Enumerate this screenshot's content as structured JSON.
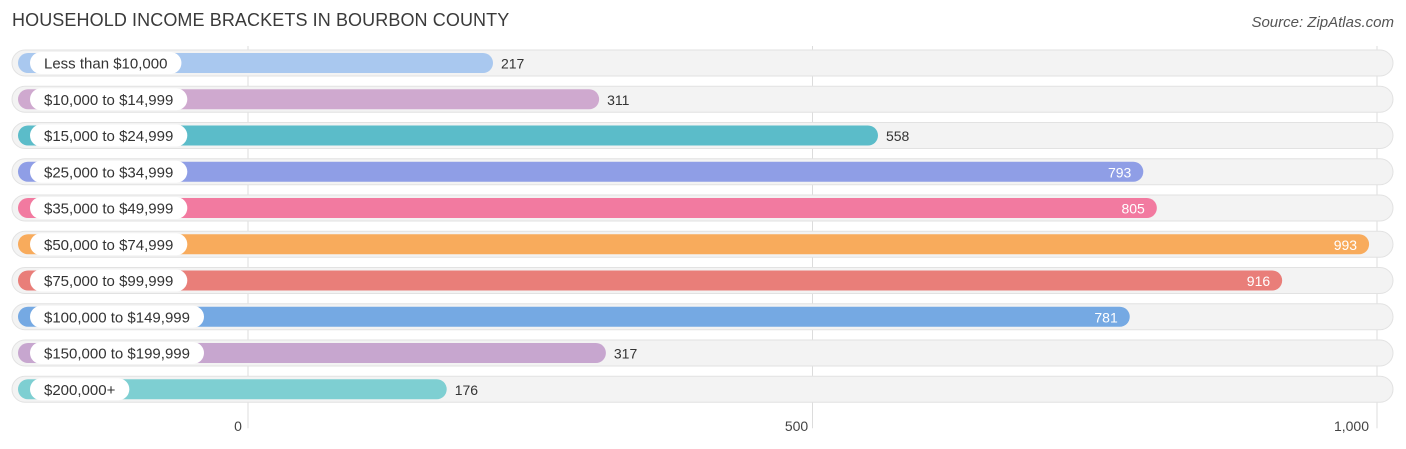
{
  "header": {
    "title": "HOUSEHOLD INCOME BRACKETS IN BOURBON COUNTY",
    "source": "Source: ZipAtlas.com"
  },
  "chart_data": {
    "type": "bar",
    "orientation": "horizontal",
    "title": "HOUSEHOLD INCOME BRACKETS IN BOURBON COUNTY",
    "xlabel": "",
    "ylabel": "",
    "xlim": [
      0,
      1000
    ],
    "grid": true,
    "ticks": [
      {
        "value": 0,
        "label": "0"
      },
      {
        "value": 500,
        "label": "500"
      },
      {
        "value": 1000,
        "label": "1,000"
      }
    ],
    "categories": [
      "Less than $10,000",
      "$10,000 to $14,999",
      "$15,000 to $24,999",
      "$25,000 to $34,999",
      "$35,000 to $49,999",
      "$50,000 to $74,999",
      "$75,000 to $99,999",
      "$100,000 to $149,999",
      "$150,000 to $199,999",
      "$200,000+"
    ],
    "values": [
      217,
      311,
      558,
      793,
      805,
      993,
      916,
      781,
      317,
      176
    ],
    "value_labels": [
      "217",
      "311",
      "558",
      "793",
      "805",
      "993",
      "916",
      "781",
      "317",
      "176"
    ],
    "colors": [
      "#a9c8ef",
      "#cfa9cf",
      "#5bbcc9",
      "#8f9ee6",
      "#f27aa0",
      "#f8ab5c",
      "#e97e79",
      "#75a9e3",
      "#c7a6cf",
      "#7ecfd2"
    ]
  }
}
